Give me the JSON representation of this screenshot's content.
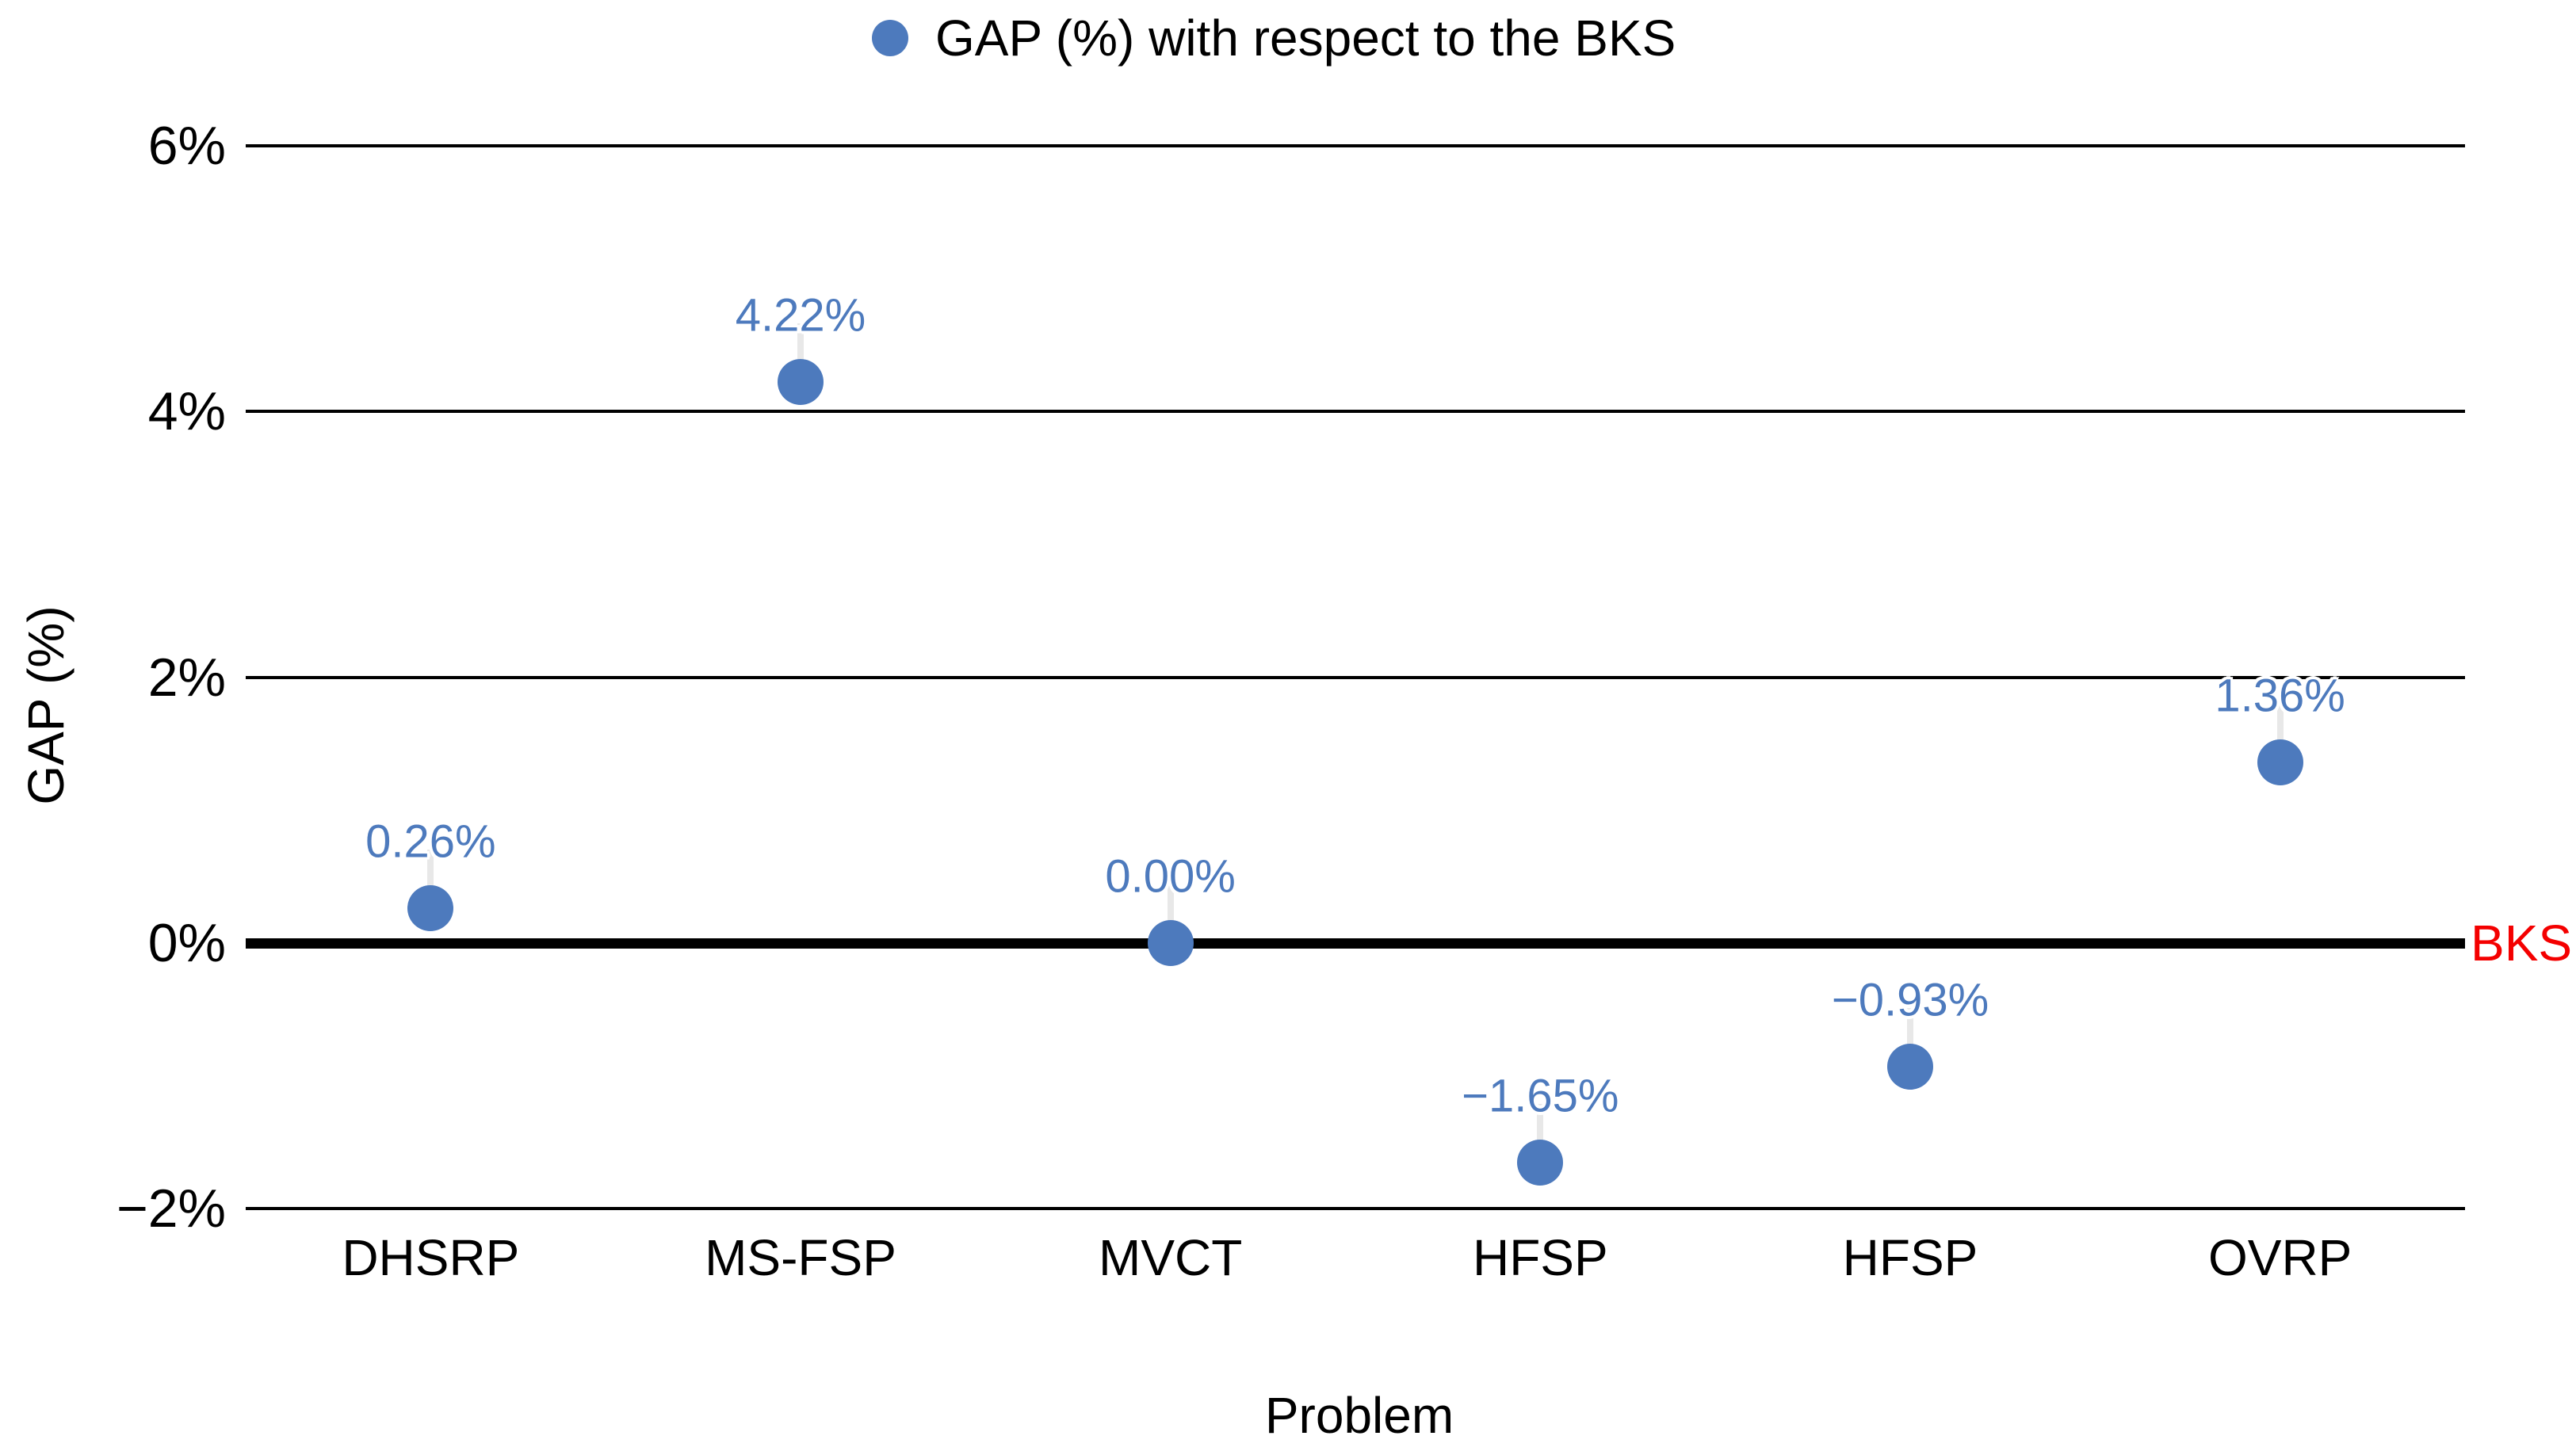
{
  "legend": {
    "label": "GAP (%) with respect to the BKS"
  },
  "annotations": {
    "bks_label": "BKS"
  },
  "colors": {
    "series_blue": "#4D7ABD",
    "label_blue": "#4D7ABD",
    "bks_red": "#F40000",
    "gridline_black": "#000000",
    "leader_gray": "#E8E8E8"
  },
  "chart_data": {
    "type": "scatter",
    "title": "",
    "categories": [
      "DHSRP",
      "MS-FSP",
      "MVCT",
      "HFSP",
      "HFSP",
      "OVRP"
    ],
    "values": [
      0.26,
      4.22,
      0.0,
      -1.65,
      -0.93,
      1.36
    ],
    "point_labels": [
      "0.26%",
      "4.22%",
      "0.00%",
      "−1.65%",
      "−0.93%",
      "1.36%"
    ],
    "xlabel": "Problem",
    "ylabel": "GAP (%)",
    "ylim": [
      -2,
      6
    ],
    "ytick_values": [
      6,
      4,
      2,
      0,
      -2
    ],
    "ytick_labels": [
      "6%",
      "4%",
      "2%",
      "0%",
      "−2%"
    ],
    "grid": true,
    "legend": [
      "GAP (%) with respect to the BKS"
    ],
    "legend_position": "top-center",
    "baseline": {
      "value": 0,
      "label": "BKS",
      "style": "thick-black"
    }
  }
}
